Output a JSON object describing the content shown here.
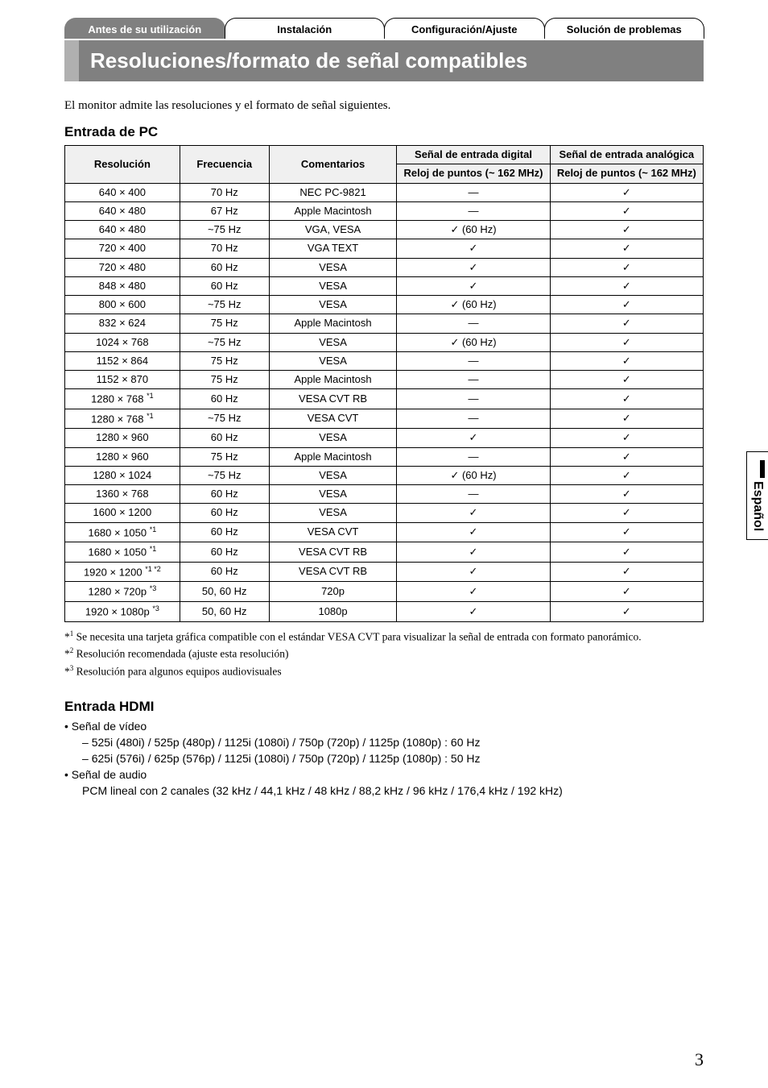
{
  "tabs": {
    "t1": "Antes de su utilización",
    "t2": "Instalación",
    "t3": "Configuración/Ajuste",
    "t4": "Solución de problemas"
  },
  "title": "Resoluciones/formato de señal compatibles",
  "intro": "El monitor admite las resoluciones y el formato de señal siguientes.",
  "pc_heading": "Entrada de PC",
  "table": {
    "h_res": "Resolución",
    "h_freq": "Frecuencia",
    "h_com": "Comentarios",
    "h_dig": "Señal de entrada digital",
    "h_ana": "Señal de entrada analógica",
    "h_clock": "Reloj de puntos (~ 162 MHz)",
    "rows": [
      {
        "res": "640 × 400",
        "sup": "",
        "freq": "70 Hz",
        "com": "NEC PC-9821",
        "dig": "—",
        "ana": "✓"
      },
      {
        "res": "640 × 480",
        "sup": "",
        "freq": "67 Hz",
        "com": "Apple Macintosh",
        "dig": "—",
        "ana": "✓"
      },
      {
        "res": "640 × 480",
        "sup": "",
        "freq": "~75 Hz",
        "com": "VGA, VESA",
        "dig": "✓ (60 Hz)",
        "ana": "✓"
      },
      {
        "res": "720 × 400",
        "sup": "",
        "freq": "70 Hz",
        "com": "VGA TEXT",
        "dig": "✓",
        "ana": "✓"
      },
      {
        "res": "720 × 480",
        "sup": "",
        "freq": "60 Hz",
        "com": "VESA",
        "dig": "✓",
        "ana": "✓"
      },
      {
        "res": "848 × 480",
        "sup": "",
        "freq": "60 Hz",
        "com": "VESA",
        "dig": "✓",
        "ana": "✓"
      },
      {
        "res": "800 × 600",
        "sup": "",
        "freq": "~75 Hz",
        "com": "VESA",
        "dig": "✓ (60 Hz)",
        "ana": "✓"
      },
      {
        "res": "832 × 624",
        "sup": "",
        "freq": "75 Hz",
        "com": "Apple Macintosh",
        "dig": "—",
        "ana": "✓"
      },
      {
        "res": "1024 × 768",
        "sup": "",
        "freq": "~75 Hz",
        "com": "VESA",
        "dig": "✓ (60 Hz)",
        "ana": "✓"
      },
      {
        "res": "1152 × 864",
        "sup": "",
        "freq": "75 Hz",
        "com": "VESA",
        "dig": "—",
        "ana": "✓"
      },
      {
        "res": "1152 × 870",
        "sup": "",
        "freq": "75 Hz",
        "com": "Apple Macintosh",
        "dig": "—",
        "ana": "✓"
      },
      {
        "res": "1280 × 768 ",
        "sup": "*1",
        "freq": "60 Hz",
        "com": "VESA CVT RB",
        "dig": "—",
        "ana": "✓"
      },
      {
        "res": "1280 × 768 ",
        "sup": "*1",
        "freq": "~75 Hz",
        "com": "VESA CVT",
        "dig": "—",
        "ana": "✓"
      },
      {
        "res": "1280 × 960",
        "sup": "",
        "freq": "60 Hz",
        "com": "VESA",
        "dig": "✓",
        "ana": "✓"
      },
      {
        "res": "1280 × 960",
        "sup": "",
        "freq": "75 Hz",
        "com": "Apple Macintosh",
        "dig": "—",
        "ana": "✓"
      },
      {
        "res": "1280 × 1024",
        "sup": "",
        "freq": "~75 Hz",
        "com": "VESA",
        "dig": "✓ (60 Hz)",
        "ana": "✓"
      },
      {
        "res": "1360 × 768",
        "sup": "",
        "freq": "60 Hz",
        "com": "VESA",
        "dig": "—",
        "ana": "✓"
      },
      {
        "res": "1600 × 1200",
        "sup": "",
        "freq": "60 Hz",
        "com": "VESA",
        "dig": "✓",
        "ana": "✓"
      },
      {
        "res": "1680 × 1050 ",
        "sup": "*1",
        "freq": "60 Hz",
        "com": "VESA CVT",
        "dig": "✓",
        "ana": "✓"
      },
      {
        "res": "1680 × 1050 ",
        "sup": "*1",
        "freq": "60 Hz",
        "com": "VESA CVT RB",
        "dig": "✓",
        "ana": "✓"
      },
      {
        "res": "1920 × 1200 ",
        "sup": "*1 *2",
        "freq": "60 Hz",
        "com": "VESA CVT RB",
        "dig": "✓",
        "ana": "✓"
      },
      {
        "res": "1280 × 720p ",
        "sup": "*3",
        "freq": "50, 60 Hz",
        "com": "720p",
        "dig": "✓",
        "ana": "✓"
      },
      {
        "res": "1920 × 1080p ",
        "sup": "*3",
        "freq": "50, 60 Hz",
        "com": "1080p",
        "dig": "✓",
        "ana": "✓"
      }
    ]
  },
  "fn1_sup": "1",
  "fn1": " Se necesita una tarjeta gráfica compatible con el estándar VESA CVT para visualizar la señal de entrada con formato panorámico.",
  "fn2_sup": "2",
  "fn2": " Resolución recomendada (ajuste esta resolución)",
  "fn3_sup": "3",
  "fn3": " Resolución para algunos equipos audiovisuales",
  "hdmi_heading": "Entrada HDMI",
  "hdmi_video_label": "Señal de vídeo",
  "hdmi_v1": "525i (480i) / 525p (480p) / 1125i (1080i) / 750p (720p) / 1125p (1080p) : 60 Hz",
  "hdmi_v2": "625i (576i) / 625p (576p) / 1125i (1080i) / 750p (720p) / 1125p (1080p) : 50 Hz",
  "hdmi_audio_label": "Señal de audio",
  "hdmi_a1": "PCM lineal con 2 canales (32 kHz / 44,1 kHz / 48 kHz / 88,2 kHz / 96 kHz / 176,4 kHz / 192 kHz)",
  "side_label": "Español",
  "page_number": "3"
}
